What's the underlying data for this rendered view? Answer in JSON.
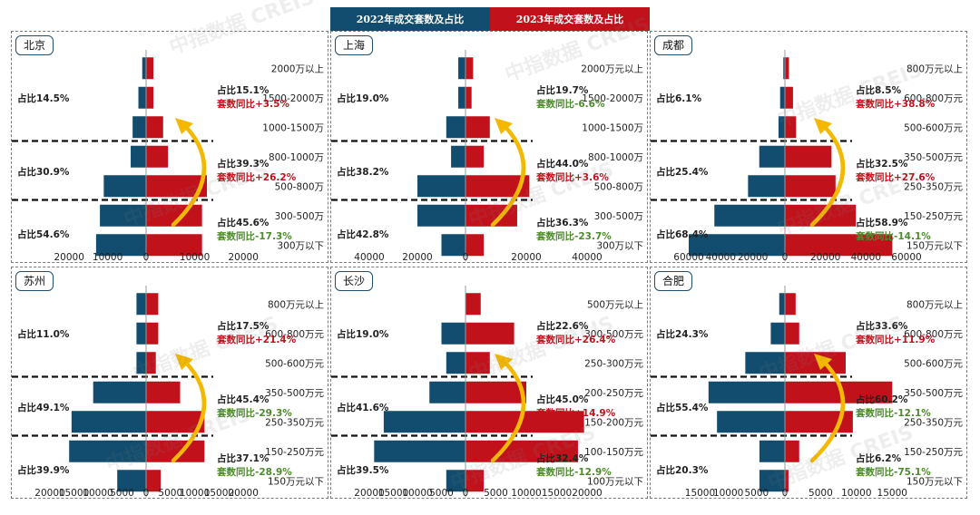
{
  "legend": {
    "a": "2022年成交套数及占比",
    "b": "2023年成交套数及占比",
    "colors": {
      "y2022": "#124C6E",
      "y2023": "#C1121C",
      "yoy_up": "#C1121C",
      "yoy_down": "#4E8A2E",
      "arrow": "#F5B800"
    }
  },
  "watermark": {
    "cn": "中指数据",
    "en": "CREIS"
  },
  "chart_data": [
    {
      "type": "bar",
      "city": "北京",
      "ylim": [
        -25000,
        25000
      ],
      "ticks": [
        "20000",
        "10000",
        "0",
        "10000",
        "20000"
      ],
      "tick_values": [
        -20000,
        -10000,
        0,
        10000,
        20000
      ],
      "categories": [
        "2000万以上",
        "1500-2000万",
        "1000-1500万",
        "800-1000万",
        "500-800万",
        "300-500万",
        "300万以下"
      ],
      "series": [
        {
          "name": "2022",
          "values": [
            1000,
            2000,
            3500,
            4000,
            11000,
            12000,
            13000
          ]
        },
        {
          "name": "2023",
          "values": [
            1500,
            1500,
            3500,
            4500,
            12500,
            11500,
            11500
          ]
        }
      ],
      "groups": [
        {
          "rows": [
            0,
            2
          ],
          "left": "占比14.5%",
          "right": "占比15.1%",
          "yoy": "套数同比+3.5%",
          "dir": "up"
        },
        {
          "rows": [
            3,
            4
          ],
          "left": "占比30.9%",
          "right": "占比39.3%",
          "yoy": "套数同比+26.2%",
          "dir": "up"
        },
        {
          "rows": [
            5,
            6
          ],
          "left": "占比54.6%",
          "right": "占比45.6%",
          "yoy": "套数同比-17.3%",
          "dir": "down"
        }
      ]
    },
    {
      "type": "bar",
      "city": "上海",
      "ylim": [
        -40000,
        40000
      ],
      "ticks": [
        "40000",
        "20000",
        "0",
        "20000",
        "40000"
      ],
      "tick_values": [
        -40000,
        -20000,
        0,
        20000,
        40000
      ],
      "categories": [
        "2000万元以上",
        "1500-2000万",
        "1000-1500万",
        "800-1000万",
        "500-800万",
        "300-500万",
        "300万以下"
      ],
      "series": [
        {
          "name": "2022",
          "values": [
            3000,
            3000,
            8000,
            6000,
            20000,
            20000,
            10000
          ]
        },
        {
          "name": "2023",
          "values": [
            2500,
            2000,
            8000,
            6000,
            21000,
            17000,
            6000
          ]
        }
      ],
      "groups": [
        {
          "rows": [
            0,
            2
          ],
          "left": "占比19.0%",
          "right": "占比19.7%",
          "yoy": "套数同比-6.6%",
          "dir": "down"
        },
        {
          "rows": [
            3,
            4
          ],
          "left": "占比38.2%",
          "right": "占比44.0%",
          "yoy": "套数同比+3.6%",
          "dir": "up"
        },
        {
          "rows": [
            5,
            6
          ],
          "left": "占比42.8%",
          "right": "占比36.3%",
          "yoy": "套数同比-23.7%",
          "dir": "down"
        }
      ]
    },
    {
      "type": "bar",
      "city": "成都",
      "ylim": [
        -60000,
        60000
      ],
      "ticks": [
        "60000",
        "40000",
        "20000",
        "0",
        "20000",
        "40000",
        "60000"
      ],
      "tick_values": [
        -60000,
        -40000,
        -20000,
        0,
        20000,
        40000,
        60000
      ],
      "categories": [
        "800万元以上",
        "600-800万元",
        "500-600万元",
        "350-500万元",
        "250-350万元",
        "150-250万元",
        "150万元以下"
      ],
      "series": [
        {
          "name": "2022",
          "values": [
            1000,
            3000,
            4000,
            16000,
            23000,
            44000,
            60000
          ]
        },
        {
          "name": "2023",
          "values": [
            2000,
            4000,
            5500,
            23000,
            25000,
            35000,
            53000
          ]
        }
      ],
      "groups": [
        {
          "rows": [
            0,
            2
          ],
          "left": "占比6.1%",
          "right": "占比8.5%",
          "yoy": "套数同比+38.8%",
          "dir": "up"
        },
        {
          "rows": [
            3,
            4
          ],
          "left": "占比25.4%",
          "right": "占比32.5%",
          "yoy": "套数同比+27.6%",
          "dir": "up"
        },
        {
          "rows": [
            5,
            6
          ],
          "left": "占比68.4%",
          "right": "占比58.9%",
          "yoy": "套数同比-14.1%",
          "dir": "down"
        }
      ]
    },
    {
      "type": "bar",
      "city": "苏州",
      "ylim": [
        -20000,
        25000
      ],
      "ticks": [
        "20000",
        "15000",
        "10000",
        "5000",
        "0",
        "5000",
        "10000",
        "15000",
        "20000"
      ],
      "tick_values": [
        -20000,
        -15000,
        -10000,
        -5000,
        0,
        5000,
        10000,
        15000,
        20000
      ],
      "categories": [
        "800万元以上",
        "600-800万元",
        "500-600万元",
        "350-500万元",
        "250-350万元",
        "150-250万元",
        "150万元以下"
      ],
      "series": [
        {
          "name": "2022",
          "values": [
            2000,
            2000,
            2000,
            11000,
            15500,
            16000,
            6000
          ]
        },
        {
          "name": "2023",
          "values": [
            2500,
            2500,
            2000,
            7000,
            12000,
            12000,
            3000
          ]
        }
      ],
      "groups": [
        {
          "rows": [
            0,
            2
          ],
          "left": "占比11.0%",
          "right": "占比17.5%",
          "yoy": "套数同比+21.4%",
          "dir": "up"
        },
        {
          "rows": [
            3,
            4
          ],
          "left": "占比49.1%",
          "right": "占比45.4%",
          "yoy": "套数同比-29.3%",
          "dir": "down"
        },
        {
          "rows": [
            5,
            6
          ],
          "left": "占比39.9%",
          "right": "占比37.1%",
          "yoy": "套数同比-28.9%",
          "dir": "down"
        }
      ]
    },
    {
      "type": "bar",
      "city": "长沙",
      "ylim": [
        -20000,
        20000
      ],
      "ticks": [
        "20000",
        "15000",
        "10000",
        "5000",
        "0",
        "5000",
        "10000",
        "15000",
        "20000"
      ],
      "tick_values": [
        -20000,
        -15000,
        -10000,
        -5000,
        0,
        5000,
        10000,
        15000,
        20000
      ],
      "categories": [
        "500万元以上",
        "300-500万元",
        "250-300万元",
        "200-250万元",
        "150-200万元",
        "100-150万元",
        "100万元以下"
      ],
      "series": [
        {
          "name": "2022",
          "values": [
            0,
            5000,
            4000,
            7500,
            17000,
            19000,
            4000
          ]
        },
        {
          "name": "2023",
          "values": [
            2500,
            8000,
            4000,
            10000,
            19500,
            18500,
            3000
          ]
        }
      ],
      "groups": [
        {
          "rows": [
            0,
            2
          ],
          "left": "占比19.0%",
          "right": "占比22.6%",
          "yoy": "套数同比+26.4%",
          "dir": "up"
        },
        {
          "rows": [
            3,
            4
          ],
          "left": "占比41.6%",
          "right": "占比45.0%",
          "yoy": "套数同比+14.9%",
          "dir": "up"
        },
        {
          "rows": [
            5,
            6
          ],
          "left": "占比39.5%",
          "right": "占比32.4%",
          "yoy": "套数同比-12.9%",
          "dir": "down"
        }
      ]
    },
    {
      "type": "bar",
      "city": "合肥",
      "ylim": [
        -17000,
        17000
      ],
      "ticks": [
        "15000",
        "10000",
        "5000",
        "0",
        "5000",
        "10000",
        "15000"
      ],
      "tick_values": [
        -15000,
        -10000,
        -5000,
        0,
        5000,
        10000,
        15000
      ],
      "categories": [
        "800万元以上",
        "600-800万元",
        "500-600万元",
        "350-500万元",
        "250-350万元",
        "150-250万元",
        "150万元以下"
      ],
      "series": [
        {
          "name": "2022",
          "values": [
            1000,
            2500,
            7000,
            13500,
            12000,
            4500,
            4500
          ]
        },
        {
          "name": "2023",
          "values": [
            1500,
            2000,
            8500,
            15000,
            9500,
            2000,
            500
          ]
        }
      ],
      "groups": [
        {
          "rows": [
            0,
            2
          ],
          "left": "占比24.3%",
          "right": "占比33.6%",
          "yoy": "套数同比+11.9%",
          "dir": "up"
        },
        {
          "rows": [
            3,
            4
          ],
          "left": "占比55.4%",
          "right": "占比60.2%",
          "yoy": "套数同比-12.1%",
          "dir": "down"
        },
        {
          "rows": [
            5,
            6
          ],
          "left": "占比20.3%",
          "right": "占比6.2%",
          "yoy": "套数同比-75.1%",
          "dir": "down"
        }
      ]
    }
  ]
}
